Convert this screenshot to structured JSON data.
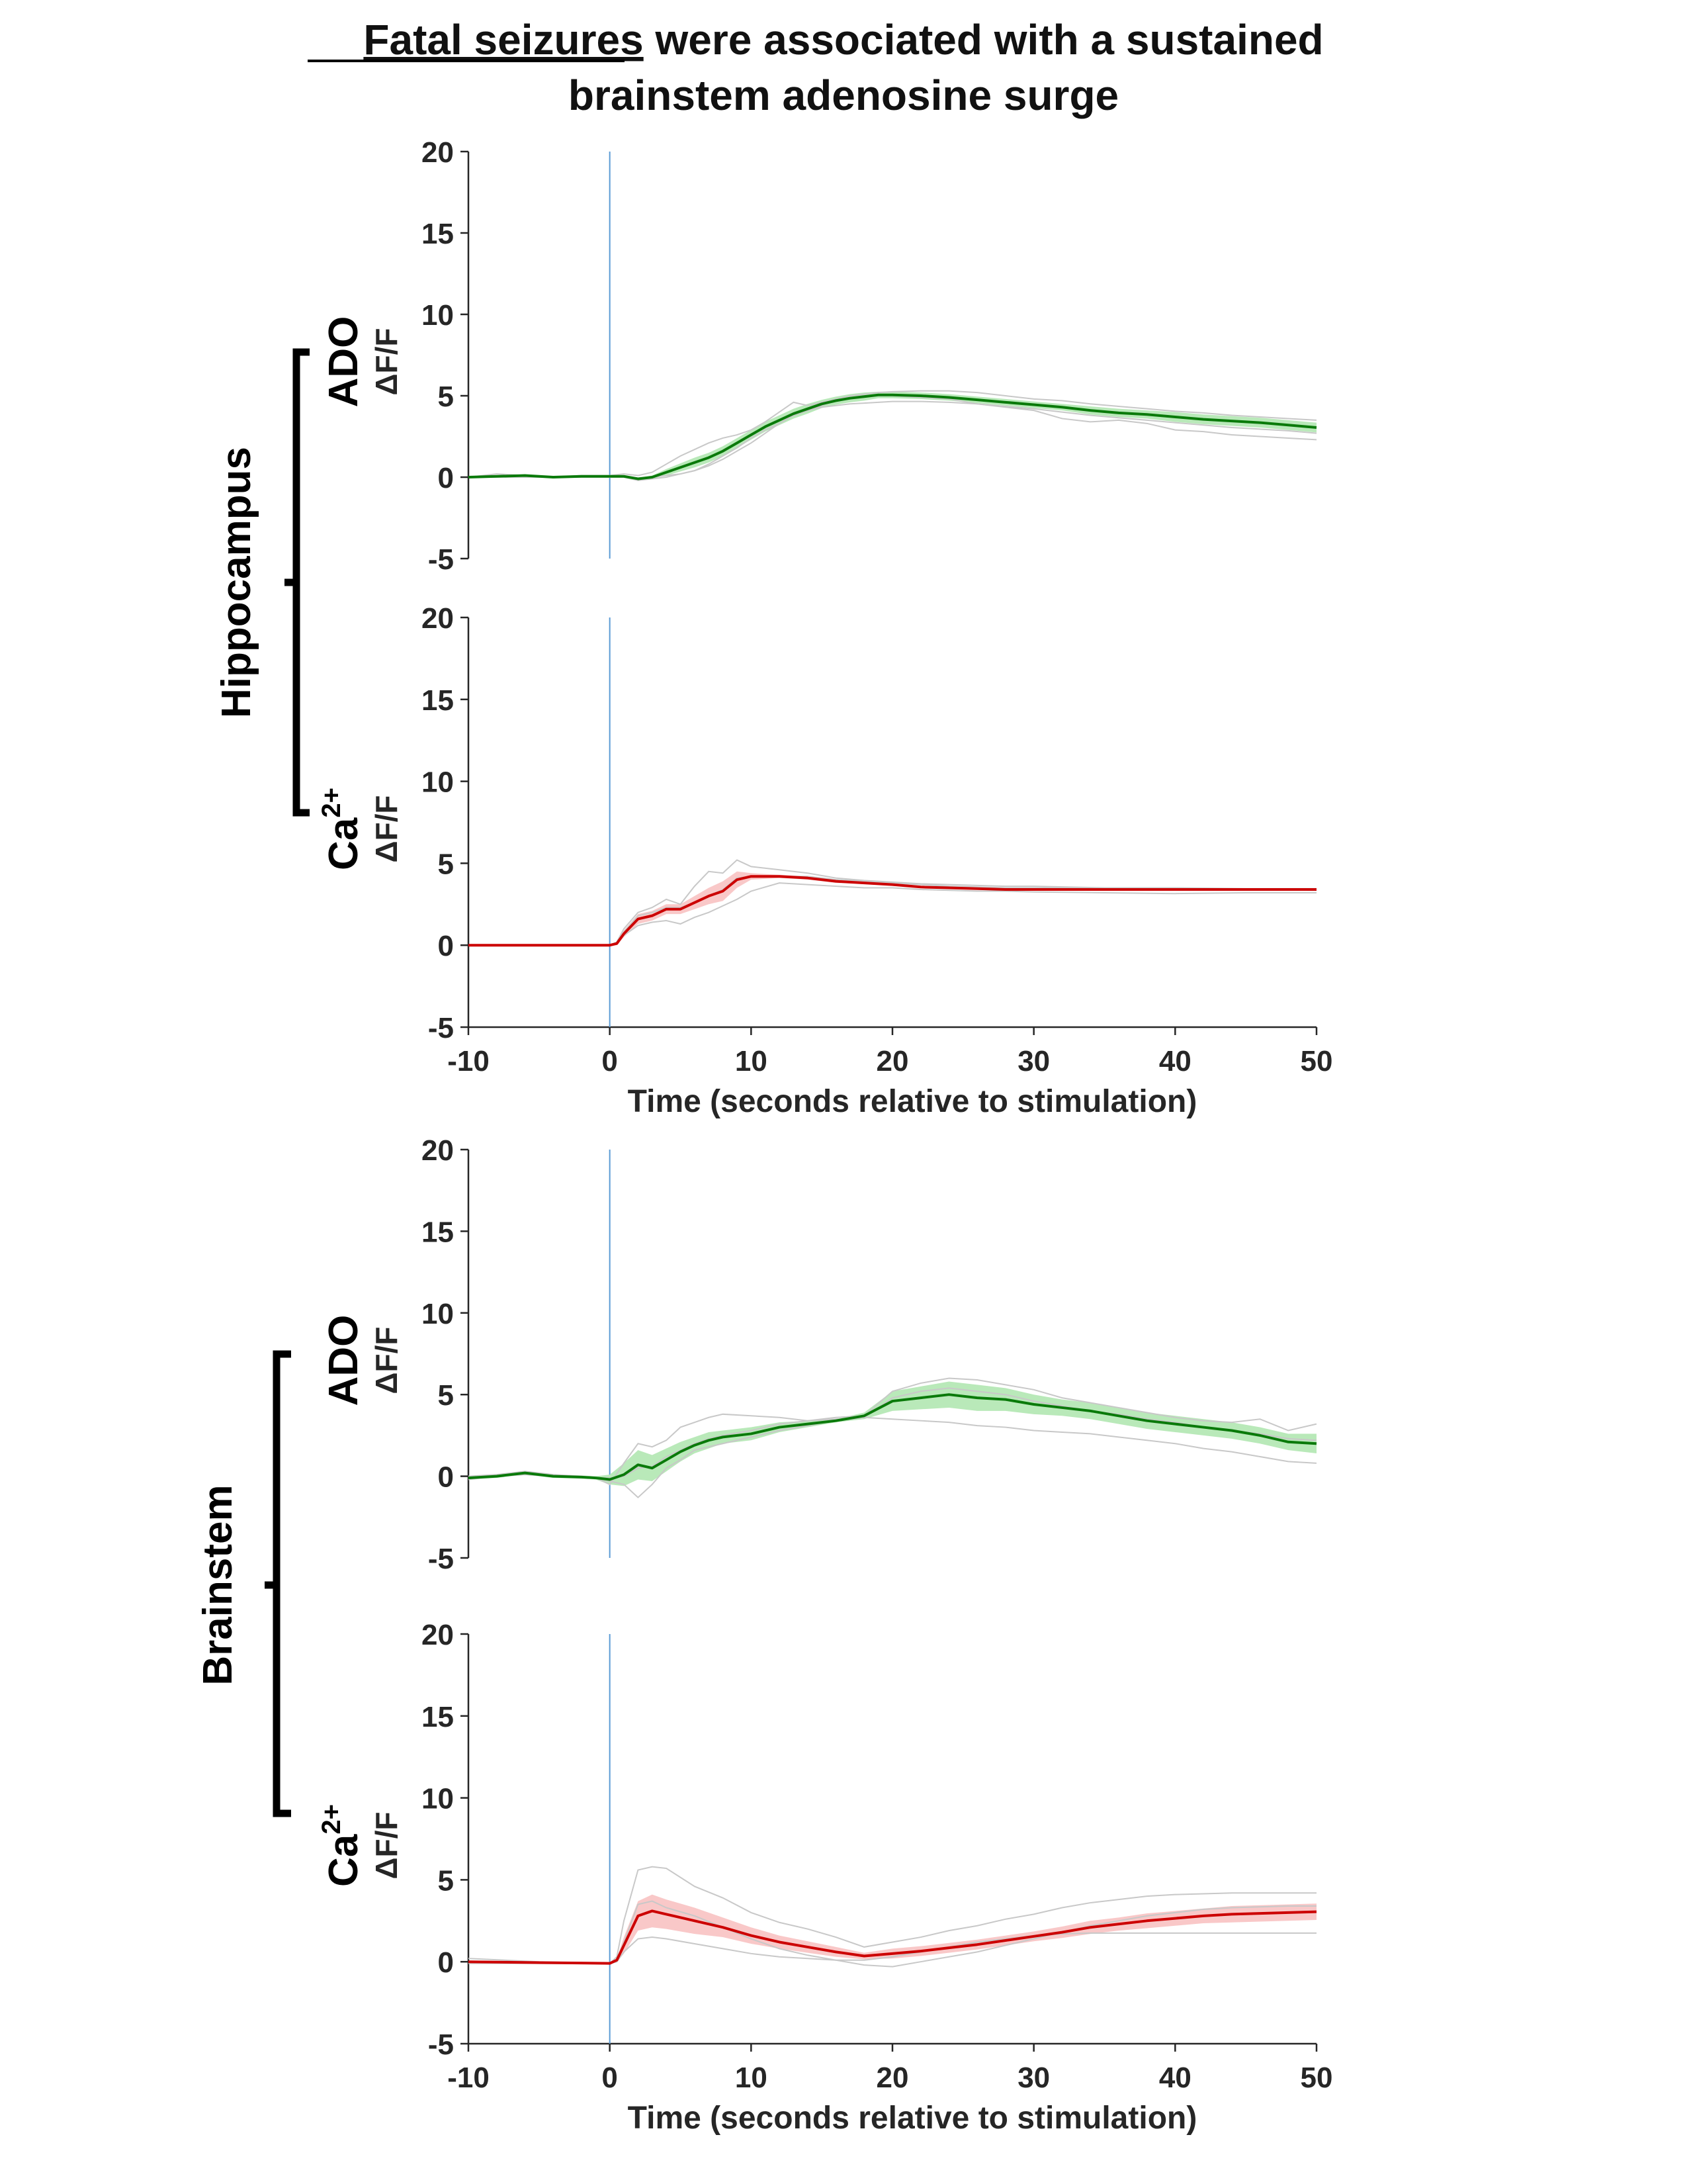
{
  "title": {
    "underlined": "Fatal seizures",
    "rest_line1": " were associated with a sustained",
    "line2": "brainstem adenosine surge"
  },
  "groups": [
    {
      "label": "Hippocampus",
      "panels": [
        0,
        1
      ]
    },
    {
      "label": "Brainstem",
      "panels": [
        2,
        3
      ]
    }
  ],
  "chart_data": [
    {
      "type": "line",
      "region": "Hippocampus",
      "channel": "ADO",
      "ylabel": "ΔF/F",
      "xlabel": "",
      "xlim": [
        -10,
        50
      ],
      "ylim": [
        -5,
        20
      ],
      "yticks": [
        "20",
        "15",
        "10",
        "5",
        "0",
        "-5"
      ],
      "xticks": [],
      "stim_time": 0,
      "colors": {
        "mean": "#0a7a0a",
        "band": "#b9e9b9",
        "individual": "#c8c8c8",
        "stim": "#5b9bd5"
      },
      "x": [
        -10,
        -8,
        -6,
        -4,
        -2,
        0,
        1,
        2,
        3,
        4,
        5,
        6,
        7,
        8,
        9,
        10,
        11,
        12,
        13,
        14,
        15,
        16,
        17,
        18,
        19,
        20,
        22,
        24,
        26,
        28,
        30,
        32,
        34,
        36,
        38,
        40,
        42,
        44,
        46,
        48,
        50
      ],
      "mean": [
        0.0,
        0.05,
        0.1,
        0.0,
        0.05,
        0.05,
        0.05,
        -0.1,
        0.0,
        0.3,
        0.6,
        0.9,
        1.2,
        1.6,
        2.1,
        2.6,
        3.1,
        3.5,
        3.9,
        4.2,
        4.5,
        4.7,
        4.85,
        4.95,
        5.05,
        5.05,
        5.0,
        4.9,
        4.75,
        4.6,
        4.45,
        4.3,
        4.1,
        3.95,
        3.85,
        3.7,
        3.55,
        3.45,
        3.35,
        3.2,
        3.05
      ],
      "sem": [
        0.05,
        0.05,
        0.05,
        0.05,
        0.05,
        0.05,
        0.05,
        0.05,
        0.1,
        0.2,
        0.25,
        0.3,
        0.3,
        0.3,
        0.3,
        0.3,
        0.3,
        0.3,
        0.3,
        0.3,
        0.25,
        0.25,
        0.25,
        0.25,
        0.2,
        0.2,
        0.2,
        0.2,
        0.2,
        0.2,
        0.2,
        0.2,
        0.25,
        0.25,
        0.25,
        0.3,
        0.3,
        0.3,
        0.3,
        0.3,
        0.3
      ],
      "individual": [
        [
          0.0,
          0.2,
          0.1,
          0.0,
          0.1,
          0.1,
          0.2,
          0.1,
          0.3,
          0.8,
          1.3,
          1.7,
          2.1,
          2.4,
          2.6,
          2.9,
          3.4,
          4.0,
          4.6,
          4.4,
          4.6,
          4.8,
          5.0,
          5.1,
          5.2,
          5.25,
          5.3,
          5.3,
          5.2,
          5.0,
          4.8,
          4.7,
          4.5,
          4.35,
          4.2,
          4.05,
          3.95,
          3.8,
          3.7,
          3.6,
          3.5
        ],
        [
          0.0,
          0.0,
          0.0,
          0.0,
          0.0,
          0.0,
          0.0,
          -0.2,
          -0.1,
          0.0,
          0.2,
          0.4,
          0.7,
          1.1,
          1.6,
          2.1,
          2.7,
          3.3,
          3.8,
          4.1,
          4.3,
          4.4,
          4.5,
          4.55,
          4.6,
          4.65,
          4.65,
          4.6,
          4.5,
          4.35,
          4.2,
          4.0,
          3.8,
          3.65,
          3.5,
          3.35,
          3.2,
          3.05,
          2.95,
          2.85,
          2.7
        ],
        [
          0.0,
          0.05,
          0.1,
          0.0,
          0.05,
          0.0,
          0.0,
          -0.1,
          0.0,
          0.1,
          0.2,
          0.4,
          0.8,
          1.3,
          1.8,
          2.4,
          2.9,
          3.3,
          3.8,
          4.1,
          4.4,
          4.7,
          4.9,
          5.0,
          5.0,
          5.0,
          4.9,
          4.8,
          4.5,
          4.3,
          4.1,
          3.6,
          3.4,
          3.5,
          3.3,
          2.9,
          2.8,
          2.6,
          2.5,
          2.4,
          2.3
        ]
      ]
    },
    {
      "type": "line",
      "region": "Hippocampus",
      "channel": "Ca2+",
      "channel_base": "Ca",
      "channel_sup": "2+",
      "ylabel": "ΔF/F",
      "xlabel": "Time (seconds relative to stimulation)",
      "xlim": [
        -10,
        50
      ],
      "ylim": [
        -5,
        20
      ],
      "yticks": [
        "20",
        "15",
        "10",
        "5",
        "0",
        "-5"
      ],
      "xticks": [
        "-10",
        "0",
        "10",
        "20",
        "30",
        "40",
        "50"
      ],
      "stim_time": 0,
      "colors": {
        "mean": "#cc0000",
        "band": "#f9c8c8",
        "individual": "#c8c8c8",
        "stim": "#5b9bd5"
      },
      "x": [
        -10,
        -5,
        0,
        0.5,
        1,
        2,
        3,
        4,
        5,
        6,
        7,
        8,
        9,
        10,
        12,
        14,
        16,
        18,
        20,
        22,
        24,
        26,
        28,
        30,
        35,
        40,
        45,
        50
      ],
      "mean": [
        0.0,
        0.0,
        0.0,
        0.1,
        0.7,
        1.6,
        1.8,
        2.2,
        2.2,
        2.6,
        3.0,
        3.3,
        4.0,
        4.2,
        4.2,
        4.1,
        3.9,
        3.8,
        3.7,
        3.55,
        3.5,
        3.45,
        3.4,
        3.4,
        3.4,
        3.4,
        3.4,
        3.4
      ],
      "sem": [
        0.0,
        0.0,
        0.0,
        0.1,
        0.2,
        0.3,
        0.3,
        0.3,
        0.3,
        0.4,
        0.5,
        0.6,
        0.5,
        0.2,
        0.1,
        0.1,
        0.1,
        0.05,
        0.05,
        0.05,
        0.05,
        0.05,
        0.05,
        0.05,
        0.05,
        0.05,
        0.05,
        0.05
      ],
      "individual": [
        [
          0.0,
          0.0,
          0.0,
          0.2,
          1.0,
          2.0,
          2.3,
          2.8,
          2.5,
          3.6,
          4.5,
          4.4,
          5.2,
          4.8,
          4.6,
          4.4,
          4.1,
          3.95,
          3.85,
          3.75,
          3.7,
          3.65,
          3.6,
          3.6,
          3.5,
          3.45,
          3.4,
          3.35
        ],
        [
          0.0,
          0.0,
          0.0,
          0.1,
          0.6,
          1.2,
          1.4,
          1.5,
          1.3,
          1.7,
          2.0,
          2.4,
          2.8,
          3.3,
          3.8,
          3.7,
          3.6,
          3.5,
          3.5,
          3.4,
          3.35,
          3.3,
          3.3,
          3.25,
          3.2,
          3.15,
          3.2,
          3.2
        ],
        [
          0.0,
          0.0,
          0.0,
          0.1,
          0.8,
          1.8,
          2.0,
          2.3,
          2.3,
          2.6,
          3.0,
          3.4,
          4.1,
          4.2,
          4.2,
          4.2,
          4.0,
          3.9,
          3.8,
          3.7,
          3.6,
          3.55,
          3.5,
          3.5,
          3.5,
          3.5,
          3.45,
          3.45
        ]
      ]
    },
    {
      "type": "line",
      "region": "Brainstem",
      "channel": "ADO",
      "ylabel": "ΔF/F",
      "xlabel": "",
      "xlim": [
        -10,
        50
      ],
      "ylim": [
        -5,
        20
      ],
      "yticks": [
        "20",
        "15",
        "10",
        "5",
        "0",
        "-5"
      ],
      "xticks": [],
      "stim_time": 0,
      "colors": {
        "mean": "#0a7a0a",
        "band": "#b9e9b9",
        "individual": "#c8c8c8",
        "stim": "#5b9bd5"
      },
      "x": [
        -10,
        -8,
        -6,
        -4,
        -2,
        -1,
        0,
        1,
        2,
        3,
        4,
        5,
        6,
        7,
        8,
        10,
        12,
        14,
        16,
        18,
        20,
        22,
        24,
        26,
        28,
        30,
        32,
        34,
        36,
        38,
        40,
        42,
        44,
        46,
        48,
        50
      ],
      "mean": [
        -0.1,
        0.0,
        0.2,
        0.0,
        -0.05,
        -0.1,
        -0.2,
        0.1,
        0.7,
        0.5,
        1.0,
        1.5,
        1.9,
        2.2,
        2.4,
        2.6,
        3.0,
        3.2,
        3.4,
        3.7,
        4.6,
        4.8,
        5.0,
        4.8,
        4.7,
        4.4,
        4.2,
        4.0,
        3.7,
        3.4,
        3.2,
        3.0,
        2.8,
        2.5,
        2.1,
        2.0
      ],
      "sem": [
        0.1,
        0.1,
        0.1,
        0.1,
        0.1,
        0.1,
        0.3,
        0.7,
        0.9,
        0.8,
        0.7,
        0.6,
        0.5,
        0.5,
        0.4,
        0.4,
        0.3,
        0.2,
        0.1,
        0.2,
        0.6,
        0.7,
        0.8,
        0.8,
        0.7,
        0.6,
        0.5,
        0.5,
        0.5,
        0.5,
        0.5,
        0.5,
        0.5,
        0.5,
        0.5,
        0.6
      ],
      "individual": [
        [
          0.0,
          0.1,
          0.3,
          0.1,
          0.0,
          -0.1,
          -0.5,
          0.8,
          2.0,
          1.8,
          2.2,
          3.0,
          3.3,
          3.6,
          3.8,
          3.7,
          3.6,
          3.4,
          3.6,
          3.7,
          5.2,
          5.7,
          6.0,
          5.9,
          5.6,
          5.3,
          4.8,
          4.5,
          4.2,
          3.9,
          3.6,
          3.4,
          3.3,
          3.5,
          2.8,
          3.2
        ],
        [
          -0.2,
          0.0,
          0.1,
          0.0,
          -0.1,
          -0.1,
          -0.3,
          -0.5,
          -1.3,
          -0.5,
          0.5,
          1.0,
          1.6,
          1.8,
          2.0,
          2.4,
          2.8,
          3.1,
          3.4,
          3.6,
          3.5,
          3.4,
          3.3,
          3.1,
          3.0,
          2.8,
          2.7,
          2.6,
          2.4,
          2.2,
          2.0,
          1.7,
          1.5,
          1.2,
          0.9,
          0.8
        ],
        [
          -0.1,
          0.0,
          0.2,
          0.0,
          0.0,
          -0.1,
          -0.1,
          0.0,
          0.5,
          0.6,
          1.2,
          1.6,
          2.0,
          2.3,
          2.5,
          2.8,
          3.2,
          3.4,
          3.5,
          3.6,
          4.8,
          5.2,
          5.4,
          5.2,
          5.0,
          4.6,
          4.3,
          4.0,
          3.8,
          3.5,
          3.3,
          3.0,
          2.8,
          2.6,
          2.3,
          2.2
        ]
      ]
    },
    {
      "type": "line",
      "region": "Brainstem",
      "channel": "Ca2+",
      "channel_base": "Ca",
      "channel_sup": "2+",
      "ylabel": "ΔF/F",
      "xlabel": "Time (seconds relative to stimulation)",
      "xlim": [
        -10,
        50
      ],
      "ylim": [
        -5,
        20
      ],
      "yticks": [
        "20",
        "15",
        "10",
        "5",
        "0",
        "-5"
      ],
      "xticks": [
        "-10",
        "0",
        "10",
        "20",
        "30",
        "40",
        "50"
      ],
      "stim_time": 0,
      "colors": {
        "mean": "#cc0000",
        "band": "#f9c8c8",
        "individual": "#c8c8c8",
        "stim": "#5b9bd5"
      },
      "x": [
        -10,
        -5,
        0,
        0.5,
        1,
        2,
        3,
        4,
        6,
        8,
        10,
        12,
        14,
        16,
        18,
        20,
        22,
        24,
        26,
        28,
        30,
        32,
        34,
        36,
        38,
        40,
        42,
        44,
        46,
        48,
        50
      ],
      "mean": [
        0.0,
        -0.05,
        -0.1,
        0.1,
        1.0,
        2.8,
        3.1,
        2.9,
        2.5,
        2.1,
        1.6,
        1.2,
        0.9,
        0.6,
        0.35,
        0.5,
        0.65,
        0.85,
        1.05,
        1.3,
        1.55,
        1.8,
        2.1,
        2.3,
        2.5,
        2.65,
        2.8,
        2.9,
        2.95,
        3.0,
        3.05
      ],
      "sem": [
        0.0,
        0.0,
        0.0,
        0.1,
        0.5,
        0.9,
        1.0,
        0.9,
        0.8,
        0.6,
        0.5,
        0.4,
        0.35,
        0.3,
        0.2,
        0.3,
        0.3,
        0.3,
        0.3,
        0.3,
        0.3,
        0.35,
        0.4,
        0.4,
        0.45,
        0.45,
        0.45,
        0.5,
        0.5,
        0.5,
        0.5
      ],
      "individual": [
        [
          0.2,
          0.0,
          -0.1,
          0.3,
          2.5,
          5.6,
          5.8,
          5.7,
          4.6,
          3.9,
          3.0,
          2.4,
          2.0,
          1.5,
          0.9,
          1.2,
          1.5,
          1.9,
          2.2,
          2.6,
          2.9,
          3.3,
          3.6,
          3.8,
          4.0,
          4.1,
          4.15,
          4.2,
          4.2,
          4.2,
          4.2
        ],
        [
          -0.1,
          -0.1,
          -0.1,
          0.0,
          0.6,
          1.4,
          1.5,
          1.4,
          1.1,
          0.8,
          0.5,
          0.3,
          0.2,
          0.1,
          0.1,
          0.3,
          0.6,
          0.9,
          1.2,
          1.4,
          1.6,
          1.7,
          1.75,
          1.75,
          1.75,
          1.75,
          1.75,
          1.75,
          1.75,
          1.75,
          1.75
        ],
        [
          0.0,
          -0.1,
          -0.1,
          0.1,
          1.2,
          3.5,
          3.7,
          3.3,
          2.8,
          2.1,
          1.4,
          0.8,
          0.4,
          0.1,
          -0.2,
          -0.3,
          0.0,
          0.3,
          0.6,
          1.0,
          1.4,
          1.8,
          2.2,
          2.5,
          2.8,
          3.0,
          3.2,
          3.3,
          3.35,
          3.4,
          3.4
        ]
      ]
    }
  ]
}
